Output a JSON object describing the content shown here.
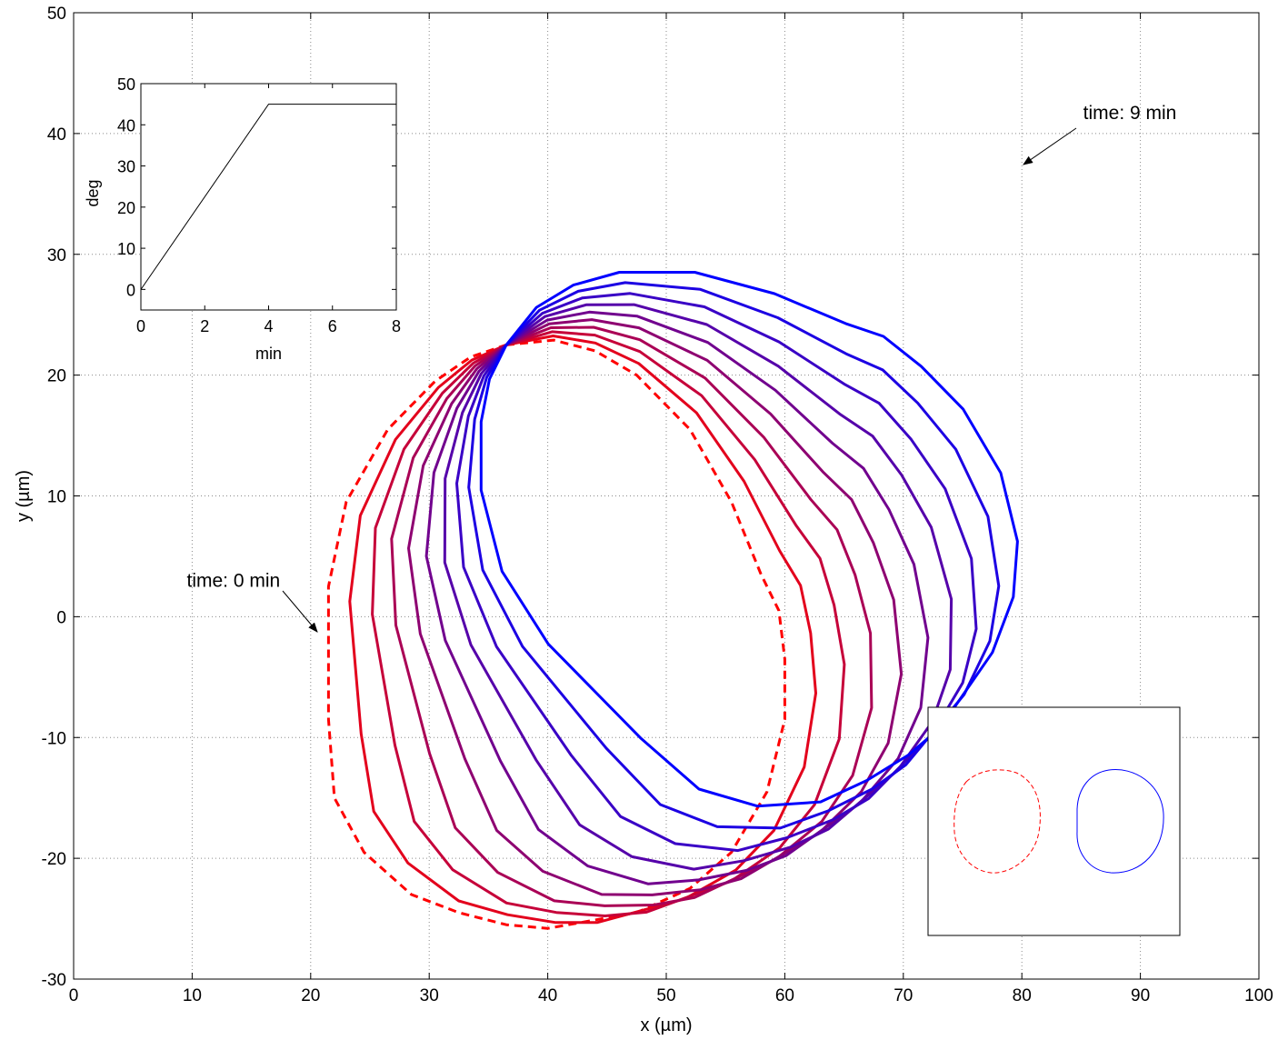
{
  "chart_data": [
    {
      "type": "line",
      "xlabel": "x (µm)",
      "ylabel": "y (µm)",
      "xlim": [
        0,
        100
      ],
      "ylim": [
        -30,
        50
      ],
      "x_ticks": [
        0,
        10,
        20,
        30,
        40,
        50,
        60,
        70,
        80,
        90,
        100
      ],
      "y_ticks": [
        -30,
        -20,
        -10,
        0,
        10,
        20,
        30,
        40,
        50
      ],
      "grid": true,
      "legend": "none",
      "color_start": "#ff0000",
      "color_end": "#0000ff",
      "anchor": [
        36.5,
        22.5
      ],
      "series": [
        {
          "angle_deg": 0,
          "style": "dashed"
        },
        {
          "angle_deg": 5,
          "style": "solid"
        },
        {
          "angle_deg": 10,
          "style": "solid"
        },
        {
          "angle_deg": 15,
          "style": "solid"
        },
        {
          "angle_deg": 20,
          "style": "solid"
        },
        {
          "angle_deg": 25,
          "style": "solid"
        },
        {
          "angle_deg": 30,
          "style": "solid"
        },
        {
          "angle_deg": 35,
          "style": "solid"
        },
        {
          "angle_deg": 40,
          "style": "solid"
        },
        {
          "angle_deg": 45,
          "style": "solid"
        }
      ],
      "annotations": [
        {
          "text": "time: 0 min",
          "x": 21,
          "y": 0.5
        },
        {
          "text": "time: 9 min",
          "x": 80,
          "y": 37.5
        }
      ]
    },
    {
      "type": "line",
      "xlabel": "min",
      "ylabel": "deg",
      "xlim": [
        0,
        8
      ],
      "ylim": [
        -5,
        50
      ],
      "x_ticks": [
        0,
        2,
        4,
        6,
        8
      ],
      "y_ticks": [
        0,
        10,
        20,
        30,
        40,
        50
      ],
      "grid": false,
      "series": [
        {
          "x": [
            0,
            4,
            8
          ],
          "y": [
            0,
            45,
            45
          ]
        }
      ]
    },
    {
      "type": "line",
      "grid": false,
      "series": [
        {
          "color": "#ff0000",
          "style": "dashed"
        },
        {
          "color": "#0000ff",
          "style": "solid"
        }
      ]
    }
  ]
}
